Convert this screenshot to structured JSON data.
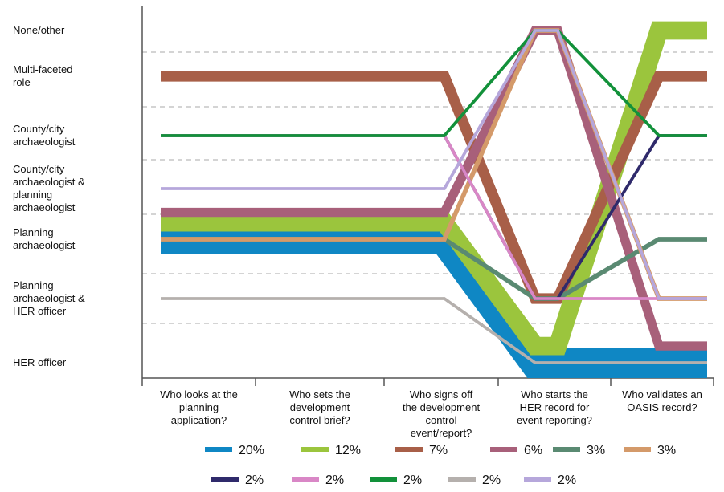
{
  "chart_data": {
    "type": "line",
    "title": "",
    "xlabel": "",
    "ylabel": "",
    "categories": [
      "Who looks at the planning application?",
      "Who sets the development control brief?",
      "Who signs off the development control event/report?",
      "Who starts the HER record for event reporting?",
      "Who validates an OASIS record?"
    ],
    "category_lines": [
      [
        "Who looks at the",
        "planning",
        "application?"
      ],
      [
        "Who sets the",
        "development",
        "control brief?"
      ],
      [
        "Who signs off",
        "the development",
        "control",
        "event/report?"
      ],
      [
        "Who starts the",
        "HER record for",
        "event reporting?"
      ],
      [
        "Who validates an",
        "OASIS record?"
      ]
    ],
    "y_categories": [
      "HER officer",
      "Planning archaeologist & HER officer",
      "Planning archaeologist",
      "County/city archaeologist & planning archaeologist",
      "County/city archaeologist",
      "Multi-faceted role",
      "None/other"
    ],
    "y_category_lines": [
      [
        "HER officer"
      ],
      [
        "Planning",
        "archaeologist &",
        "HER officer"
      ],
      [
        "Planning",
        "archaeologist"
      ],
      [
        "County/city",
        "archaeologist &",
        "planning",
        "archaeologist"
      ],
      [
        "County/city",
        "archaeologist"
      ],
      [
        "Multi-faceted",
        "role"
      ],
      [
        "None/other"
      ]
    ],
    "grid": true,
    "legend_position": "bottom",
    "series": [
      {
        "label": "20%",
        "color": "#0f87c4",
        "weight": 20,
        "values": [
          "Planning archaeologist",
          "Planning archaeologist",
          "Planning archaeologist",
          "HER officer",
          "HER officer"
        ]
      },
      {
        "label": "12%",
        "color": "#9bc53d",
        "weight": 12,
        "values": [
          "Planning archaeologist",
          "Planning archaeologist",
          "Planning archaeologist",
          "HER officer",
          "None/other"
        ]
      },
      {
        "label": "7%",
        "color": "#a85f48",
        "weight": 7,
        "values": [
          "Multi-faceted role",
          "Multi-faceted role",
          "Multi-faceted role",
          "Planning archaeologist & HER officer",
          "Multi-faceted role"
        ]
      },
      {
        "label": "6%",
        "color": "#a8607a",
        "weight": 6,
        "values": [
          "Planning archaeologist",
          "Planning archaeologist",
          "Planning archaeologist",
          "None/other",
          "HER officer"
        ]
      },
      {
        "label": "3%",
        "color": "#5a8a72",
        "weight": 3,
        "values": [
          "Planning archaeologist",
          "Planning archaeologist",
          "Planning archaeologist",
          "Planning archaeologist & HER officer",
          "Planning archaeologist"
        ]
      },
      {
        "label": "3%",
        "color": "#d49a6a",
        "weight": 3,
        "values": [
          "Planning archaeologist",
          "Planning archaeologist",
          "Planning archaeologist",
          "None/other",
          "Planning archaeologist & HER officer"
        ]
      },
      {
        "label": "2%",
        "color": "#2f2a6b",
        "weight": 2,
        "values": [
          "County/city archaeologist",
          "County/city archaeologist",
          "County/city archaeologist",
          "Planning archaeologist & HER officer",
          "County/city archaeologist"
        ]
      },
      {
        "label": "2%",
        "color": "#d987c6",
        "weight": 2,
        "values": [
          "County/city archaeologist",
          "County/city archaeologist",
          "County/city archaeologist",
          "Planning archaeologist & HER officer",
          "Planning archaeologist & HER officer"
        ]
      },
      {
        "label": "2%",
        "color": "#12913a",
        "weight": 2,
        "values": [
          "County/city archaeologist",
          "County/city archaeologist",
          "County/city archaeologist",
          "None/other",
          "County/city archaeologist"
        ]
      },
      {
        "label": "2%",
        "color": "#b5b0ad",
        "weight": 2,
        "values": [
          "Planning archaeologist & HER officer",
          "Planning archaeologist & HER officer",
          "Planning archaeologist & HER officer",
          "HER officer",
          "HER officer"
        ]
      },
      {
        "label": "2%",
        "color": "#b6a7db",
        "weight": 2,
        "values": [
          "County/city archaeologist & planning archaeologist",
          "County/city archaeologist & planning archaeologist",
          "County/city archaeologist & planning archaeologist",
          "None/other",
          "Planning archaeologist & HER officer"
        ]
      }
    ]
  }
}
